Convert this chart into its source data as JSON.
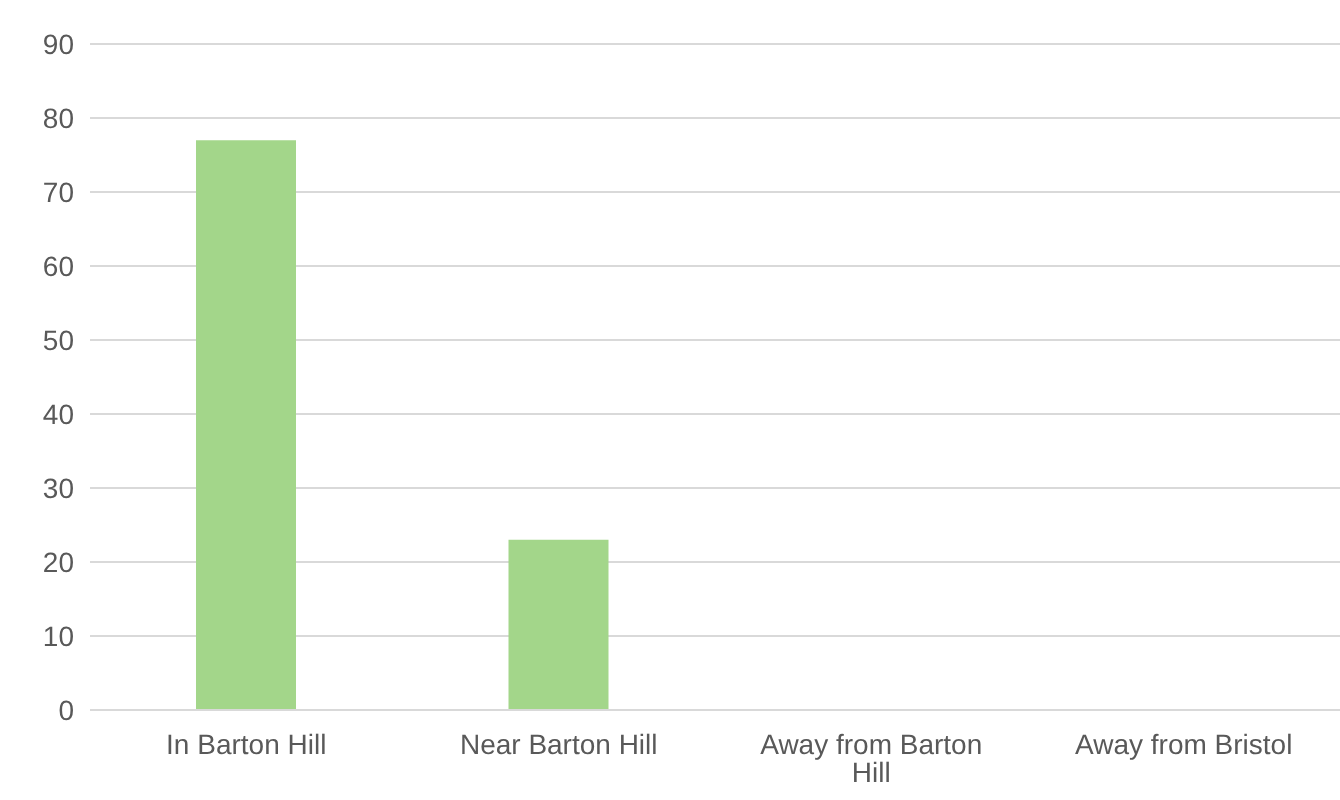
{
  "chart_data": {
    "type": "bar",
    "categories": [
      "In Barton Hill",
      "Near Barton Hill",
      "Away from Barton Hill",
      "Away from Bristol"
    ],
    "values": [
      77,
      23,
      0,
      0
    ],
    "color": "#a3d68a",
    "ylim": [
      0,
      90
    ],
    "yticks": [
      0,
      10,
      20,
      30,
      40,
      50,
      60,
      70,
      80,
      90
    ],
    "grid": "y",
    "legend": false
  }
}
